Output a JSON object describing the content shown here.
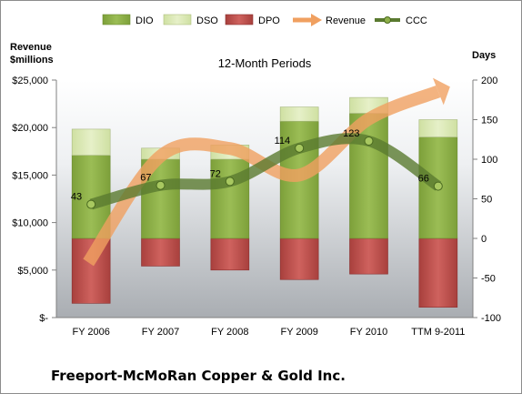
{
  "chart_data": {
    "type": "bar",
    "title": "12-Month Periods",
    "company": "Freeport-McMoRan Copper & Gold Inc.",
    "left_axis_title": [
      "Revenue",
      "$millions"
    ],
    "right_axis_title": "Days",
    "categories": [
      "FY 2006",
      "FY 2007",
      "FY 2008",
      "FY 2009",
      "FY 2010",
      "TTM 9-2011"
    ],
    "left_axis": {
      "min": 0,
      "max": 25000,
      "ticks": [
        "$-",
        "$5,000",
        "$10,000",
        "$15,000",
        "$20,000",
        "$25,000"
      ]
    },
    "right_axis": {
      "min": -100,
      "max": 200,
      "ticks": [
        "-100",
        "-50",
        "0",
        "50",
        "100",
        "150",
        "200"
      ]
    },
    "series": [
      {
        "name": "DIO",
        "axis": "days",
        "type": "stacked-bar",
        "color": "#8fb04a",
        "values": [
          105,
          100,
          100,
          148,
          158,
          128
        ]
      },
      {
        "name": "DSO",
        "axis": "days",
        "type": "stacked-bar",
        "color": "#d8e8b0",
        "values": [
          33,
          14,
          18,
          18,
          20,
          22
        ]
      },
      {
        "name": "DPO",
        "axis": "days",
        "type": "bar",
        "color": "#c0504d",
        "values": [
          -82,
          -35,
          -40,
          -52,
          -45,
          -87
        ]
      },
      {
        "name": "Revenue",
        "axis": "revenue",
        "type": "line",
        "color": "#f0a060",
        "values": [
          5800,
          17000,
          17800,
          15000,
          20900,
          23800
        ]
      },
      {
        "name": "CCC",
        "axis": "days",
        "type": "line",
        "color": "#5a7a30",
        "values": [
          43,
          67,
          72,
          114,
          123,
          66
        ],
        "labels": [
          "43",
          "67",
          "72",
          "114",
          "123",
          "66"
        ]
      }
    ],
    "grid": false,
    "legend_position": "top"
  }
}
